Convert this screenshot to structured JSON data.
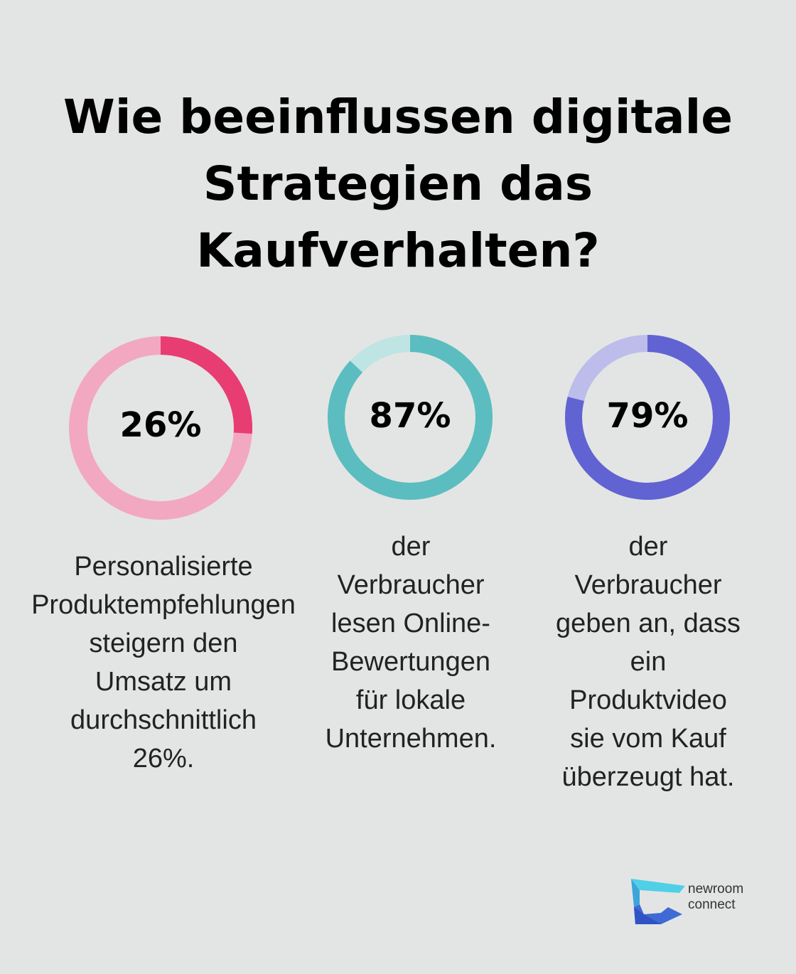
{
  "title": "Wie beeinflussen digitale Strategien das Kaufverhalten?",
  "chart_data": [
    {
      "type": "pie",
      "value": 26,
      "label": "26%",
      "description": "Personalisierte\nProduktempfehlungen\nsteigern den\nUmsatz um\ndurchschnittlich\n26%.",
      "colors": {
        "filled": "#e73d72",
        "track": "#f2a8c1"
      }
    },
    {
      "type": "pie",
      "value": 87,
      "label": "87%",
      "description": "der\nVerbraucher\nlesen Online-\nBewertungen\nfür lokale\nUnternehmen.",
      "colors": {
        "filled": "#5bbdbf",
        "track": "#bfe4e4"
      }
    },
    {
      "type": "pie",
      "value": 79,
      "label": "79%",
      "description": "der\nVerbraucher\ngeben an, dass\nein\nProduktvideo\nsie vom Kauf\nüberzeugt hat.",
      "colors": {
        "filled": "#6163d2",
        "track": "#bcbdeb"
      }
    }
  ],
  "logo": {
    "line1": "newroom",
    "line2": "connect"
  }
}
